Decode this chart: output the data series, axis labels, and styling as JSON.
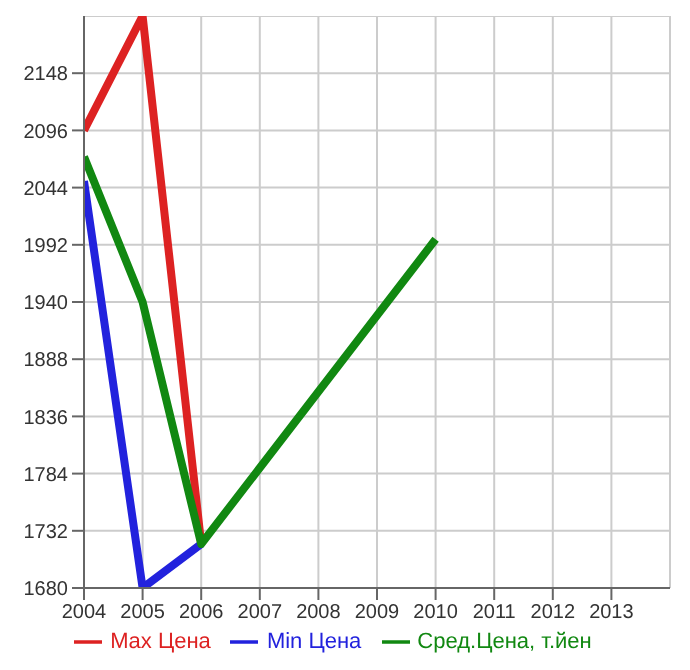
{
  "chart_data": {
    "type": "line",
    "xlim": [
      2004,
      2014
    ],
    "xticks": [
      2004,
      2005,
      2006,
      2007,
      2008,
      2009,
      2010,
      2011,
      2012,
      2013
    ],
    "ylim": [
      1680,
      2200
    ],
    "yticks": [
      1680,
      1732,
      1784,
      1836,
      1888,
      1940,
      1992,
      2044,
      2096,
      2148
    ],
    "grid": true,
    "legend": "bottom",
    "marker": "none",
    "line_style": "solid",
    "series": [
      {
        "name": "Max Цена",
        "color": "#dd2222",
        "x": [
          2004,
          2005,
          2006
        ],
        "values": [
          2096,
          2200,
          1720
        ]
      },
      {
        "name": "Min Цена",
        "color": "#2222dd",
        "x": [
          2004,
          2005,
          2006
        ],
        "values": [
          2050,
          1680,
          1720
        ]
      },
      {
        "name": "Сред.Цена, т.йен",
        "color": "#118811",
        "x": [
          2004,
          2005,
          2006,
          2010
        ],
        "values": [
          2072,
          1940,
          1720,
          1997
        ]
      }
    ]
  }
}
